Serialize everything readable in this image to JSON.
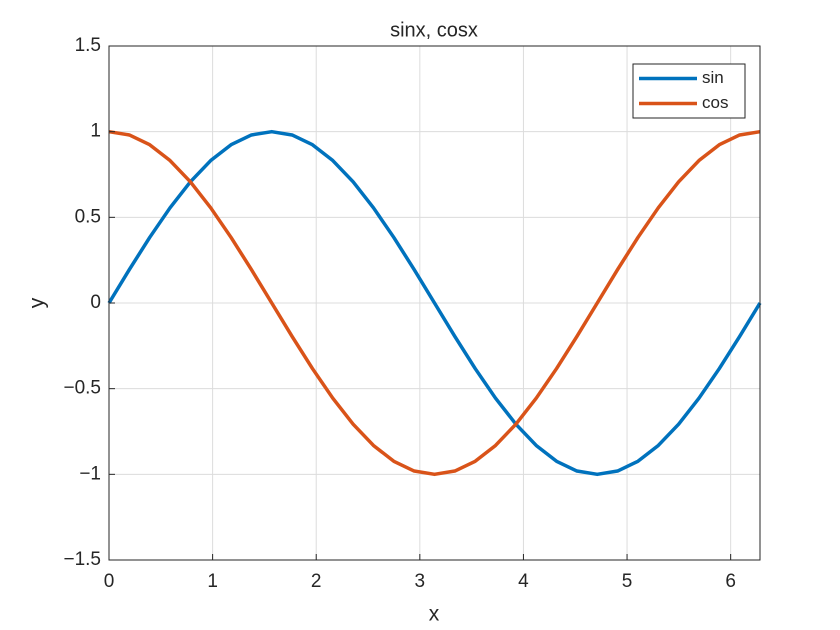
{
  "chart_data": {
    "type": "line",
    "title": "sinx, cosx",
    "xlabel": "x",
    "ylabel": "y",
    "x": [
      0,
      0.1963,
      0.3927,
      0.589,
      0.7854,
      0.9817,
      1.1781,
      1.3744,
      1.5708,
      1.7671,
      1.9635,
      2.1598,
      2.3562,
      2.5525,
      2.7489,
      2.9452,
      3.1416,
      3.3379,
      3.5343,
      3.7306,
      3.927,
      4.1233,
      4.3197,
      4.516,
      4.7124,
      4.9087,
      5.1051,
      5.3014,
      5.4978,
      5.6941,
      5.8905,
      6.0868,
      6.2832
    ],
    "series": [
      {
        "name": "sin",
        "color": "#0072bd",
        "values": [
          0,
          0.1951,
          0.3827,
          0.5556,
          0.7071,
          0.8315,
          0.9239,
          0.9808,
          1,
          0.9808,
          0.9239,
          0.8315,
          0.7071,
          0.5556,
          0.3827,
          0.1951,
          0,
          -0.1951,
          -0.3827,
          -0.5556,
          -0.7071,
          -0.8315,
          -0.9239,
          -0.9808,
          -1,
          -0.9808,
          -0.9239,
          -0.8315,
          -0.7071,
          -0.5556,
          -0.3827,
          -0.1951,
          0
        ]
      },
      {
        "name": "cos",
        "color": "#d95319",
        "values": [
          1,
          0.9808,
          0.9239,
          0.8315,
          0.7071,
          0.5556,
          0.3827,
          0.1951,
          0,
          -0.1951,
          -0.3827,
          -0.5556,
          -0.7071,
          -0.8315,
          -0.9239,
          -0.9808,
          -1,
          -0.9808,
          -0.9239,
          -0.8315,
          -0.7071,
          -0.5556,
          -0.3827,
          -0.1951,
          0,
          0.1951,
          0.3827,
          0.5556,
          0.7071,
          0.8315,
          0.9239,
          0.9808,
          1
        ]
      }
    ],
    "xlim": [
      0,
      6.2832
    ],
    "xticks": [
      0,
      1,
      2,
      3,
      4,
      5,
      6
    ],
    "ylim": [
      -1.5,
      1.5
    ],
    "yticks": [
      {
        "value": -1.5,
        "label": "−1.5"
      },
      {
        "value": -1,
        "label": "−1"
      },
      {
        "value": -0.5,
        "label": "−0.5"
      },
      0,
      0.5,
      1,
      1.5
    ],
    "grid": true,
    "legend": "northeast"
  }
}
